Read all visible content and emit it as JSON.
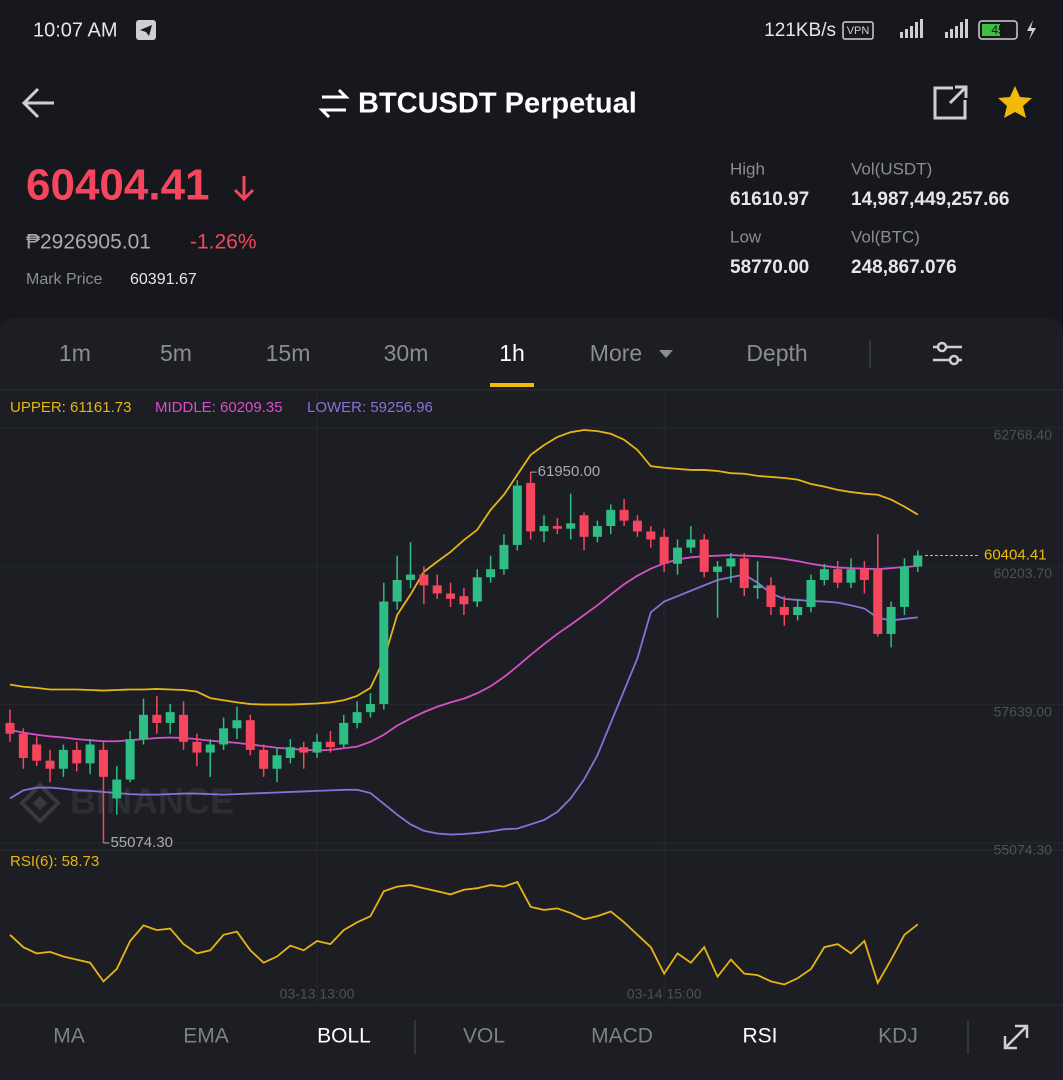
{
  "status_bar": {
    "time": "10:07 AM",
    "network_speed": "121KB/s",
    "vpn": "VPN",
    "battery": "45"
  },
  "header": {
    "title": "BTCUSDT Perpetual"
  },
  "ticker": {
    "last_price": "60404.41",
    "local_price": "₱2926905.01",
    "change": "-1.26%",
    "mark_price_label": "Mark Price",
    "mark_price": "60391.67"
  },
  "stats": [
    {
      "label": "High",
      "value": "61610.97"
    },
    {
      "label": "Vol(USDT)",
      "value": "14,987,449,257.66"
    },
    {
      "label": "Low",
      "value": "58770.00"
    },
    {
      "label": "Vol(BTC)",
      "value": "248,867.076"
    }
  ],
  "intervals": {
    "items": [
      "1m",
      "5m",
      "15m",
      "30m",
      "1h",
      "More",
      "Depth"
    ],
    "active": 4
  },
  "chart_data": {
    "type": "candlestick",
    "categories": [
      null,
      null,
      null,
      null,
      null,
      null,
      null,
      null,
      null,
      null,
      null,
      null,
      null,
      null,
      null,
      null,
      null,
      null,
      null,
      null,
      null,
      null,
      null,
      "03-13 13:00",
      null,
      null,
      null,
      null,
      null,
      null,
      null,
      null,
      null,
      null,
      null,
      null,
      null,
      null,
      null,
      null,
      null,
      null,
      null,
      null,
      null,
      null,
      null,
      null,
      null,
      "03-14 15:00",
      null,
      null,
      null,
      null,
      null,
      null,
      null,
      null,
      null,
      null,
      null,
      null,
      null,
      null,
      null,
      null,
      null,
      null,
      null
    ],
    "open": [
      57300,
      57100,
      56900,
      56600,
      56450,
      56800,
      56550,
      56800,
      55900,
      56250,
      57000,
      57450,
      57300,
      57450,
      56950,
      56750,
      56900,
      57200,
      57350,
      56800,
      56450,
      56650,
      56850,
      56750,
      56950,
      56900,
      57300,
      57500,
      57650,
      59550,
      59950,
      60050,
      59850,
      59700,
      59650,
      59550,
      60000,
      60150,
      60600,
      61750,
      60850,
      60950,
      60900,
      61150,
      60750,
      60950,
      61250,
      61050,
      60850,
      60750,
      60250,
      60550,
      60700,
      60100,
      60200,
      60350,
      59800,
      59850,
      59450,
      59300,
      59450,
      59950,
      60150,
      59900,
      60150,
      60150,
      58950,
      59450,
      60200
    ],
    "high": [
      57550,
      57200,
      57050,
      56800,
      56900,
      56950,
      57000,
      56950,
      56500,
      57150,
      57750,
      57800,
      57650,
      57700,
      57100,
      57000,
      57400,
      57600,
      57450,
      56900,
      56850,
      57000,
      56950,
      57100,
      57150,
      57450,
      57700,
      57850,
      59900,
      60400,
      60650,
      60200,
      60050,
      59900,
      59800,
      60150,
      60400,
      60800,
      61800,
      61950,
      61150,
      61100,
      61550,
      61200,
      61050,
      61350,
      61450,
      61150,
      60950,
      60900,
      60700,
      60950,
      60800,
      60300,
      60450,
      60450,
      60300,
      60000,
      59650,
      59600,
      60050,
      60250,
      60300,
      60350,
      60300,
      60800,
      59550,
      60350,
      60500
    ],
    "low": [
      56950,
      56450,
      56500,
      56200,
      56300,
      56400,
      56350,
      55074.3,
      55600,
      56200,
      56900,
      57100,
      57100,
      56800,
      56500,
      56300,
      56800,
      57000,
      56700,
      56300,
      56200,
      56550,
      56450,
      56650,
      56750,
      56850,
      57200,
      57400,
      57550,
      59400,
      59800,
      59500,
      59600,
      59450,
      59300,
      59450,
      59900,
      60050,
      60500,
      60700,
      60650,
      60800,
      60700,
      60500,
      60650,
      60800,
      60950,
      60750,
      60550,
      60100,
      60050,
      60450,
      60000,
      59250,
      59900,
      59650,
      59600,
      59300,
      59100,
      59200,
      59350,
      59850,
      59800,
      59800,
      59700,
      58900,
      58700,
      59300,
      60100
    ],
    "close": [
      57100,
      56650,
      56600,
      56450,
      56800,
      56550,
      56900,
      56300,
      56250,
      57000,
      57450,
      57300,
      57500,
      56950,
      56750,
      56900,
      57200,
      57350,
      56800,
      56450,
      56700,
      56850,
      56750,
      56950,
      56850,
      57300,
      57500,
      57650,
      59550,
      59950,
      60050,
      59850,
      59700,
      59600,
      59500,
      60000,
      60150,
      60600,
      61700,
      60850,
      60950,
      60900,
      61000,
      60750,
      60950,
      61250,
      61050,
      60850,
      60700,
      60250,
      60550,
      60700,
      60100,
      60200,
      60350,
      59800,
      59850,
      59450,
      59300,
      59450,
      59950,
      60150,
      59900,
      60150,
      59950,
      58950,
      59450,
      60200,
      60404.41
    ],
    "up_color": "#2ebd85",
    "down_color": "#f6465d",
    "ylim": [
      54944,
      63472
    ],
    "yticks": [
      {
        "value": 62768.4,
        "label": "62768.40"
      },
      {
        "value": 60203.7,
        "label": "60203.70"
      },
      {
        "value": 57639,
        "label": "57639.00"
      },
      {
        "value": 55074.3,
        "label": "55074.30"
      }
    ],
    "grid": true,
    "last_price": 60404.41,
    "annotations": [
      {
        "value": 61950,
        "label": "61950.00"
      },
      {
        "value": 55074.3,
        "label": "55074.30"
      }
    ],
    "watermark": "BINANCE",
    "overlay": {
      "series": [
        {
          "legend": "UPPER: 61161.73",
          "color": "#e7b416",
          "values": [
            58010,
            57970,
            57950,
            57920,
            57920,
            57920,
            57910,
            57900,
            57910,
            57920,
            57920,
            57930,
            57920,
            57910,
            57880,
            57760,
            57720,
            57680,
            57650,
            57640,
            57640,
            57640,
            57650,
            57660,
            57680,
            57720,
            57800,
            57950,
            58470,
            59300,
            59680,
            60100,
            60290,
            60470,
            60690,
            60880,
            61250,
            61530,
            61900,
            62270,
            62450,
            62600,
            62690,
            62730,
            62710,
            62660,
            62550,
            62360,
            62060,
            62030,
            62010,
            61990,
            61990,
            61970,
            61930,
            61920,
            61880,
            61860,
            61840,
            61810,
            61730,
            61680,
            61620,
            61580,
            61550,
            61530,
            61440,
            61310,
            61161.73
          ]
        },
        {
          "legend": "MIDDLE: 60209.35",
          "color": "#d84fc8",
          "values": [
            57170,
            57120,
            57080,
            57050,
            57030,
            57000,
            56980,
            56960,
            56960,
            56980,
            57000,
            57020,
            57030,
            57020,
            57000,
            56970,
            56950,
            56930,
            56900,
            56870,
            56840,
            56820,
            56800,
            56790,
            56800,
            56830,
            56860,
            56950,
            57080,
            57250,
            57380,
            57500,
            57600,
            57680,
            57750,
            57850,
            57980,
            58150,
            58350,
            58560,
            58760,
            58950,
            59120,
            59300,
            59480,
            59680,
            59870,
            60030,
            60160,
            60260,
            60330,
            60370,
            60390,
            60400,
            60410,
            60400,
            60390,
            60370,
            60340,
            60300,
            60250,
            60210,
            60180,
            60170,
            60160,
            60150,
            60170,
            60190,
            60209.35
          ]
        },
        {
          "legend": "LOWER: 59256.96",
          "color": "#8c6fd8",
          "values": [
            55900,
            56050,
            56100,
            56100,
            56080,
            56050,
            56040,
            56020,
            56000,
            55980,
            55970,
            55970,
            55980,
            55990,
            55990,
            55980,
            55970,
            55980,
            55990,
            56000,
            56010,
            56020,
            56030,
            56040,
            56050,
            56060,
            56060,
            56000,
            55800,
            55600,
            55420,
            55300,
            55250,
            55230,
            55240,
            55260,
            55290,
            55330,
            55340,
            55420,
            55500,
            55650,
            55900,
            56250,
            56700,
            57300,
            57900,
            58500,
            59350,
            59550,
            59650,
            59750,
            59850,
            59950,
            60000,
            60050,
            59900,
            59700,
            59600,
            59580,
            59560,
            59550,
            59530,
            59480,
            59420,
            59250,
            59200,
            59230,
            59256.96
          ]
        }
      ]
    },
    "rsi": {
      "legend": "RSI(6): 58.73",
      "color": "#e7b416",
      "ylim": [
        10,
        95
      ],
      "values": [
        52,
        44,
        40,
        41,
        38,
        36,
        34,
        22,
        30,
        48,
        58,
        55,
        56,
        46,
        40,
        42,
        52,
        54,
        42,
        34,
        38,
        45,
        42,
        48,
        46,
        55,
        60,
        64,
        80,
        83,
        84,
        82,
        80,
        78,
        81,
        82,
        84,
        83,
        86,
        70,
        68,
        69,
        66,
        62,
        64,
        67,
        60,
        52,
        44,
        27,
        40,
        34,
        44,
        25,
        36,
        27,
        26,
        22,
        20,
        24,
        30,
        44,
        46,
        40,
        48,
        21,
        36,
        52,
        58.73
      ]
    }
  },
  "indicator_tabs": {
    "items": [
      "MA",
      "EMA",
      "BOLL",
      "VOL",
      "MACD",
      "RSI",
      "KDJ"
    ],
    "active": [
      2,
      5
    ]
  }
}
